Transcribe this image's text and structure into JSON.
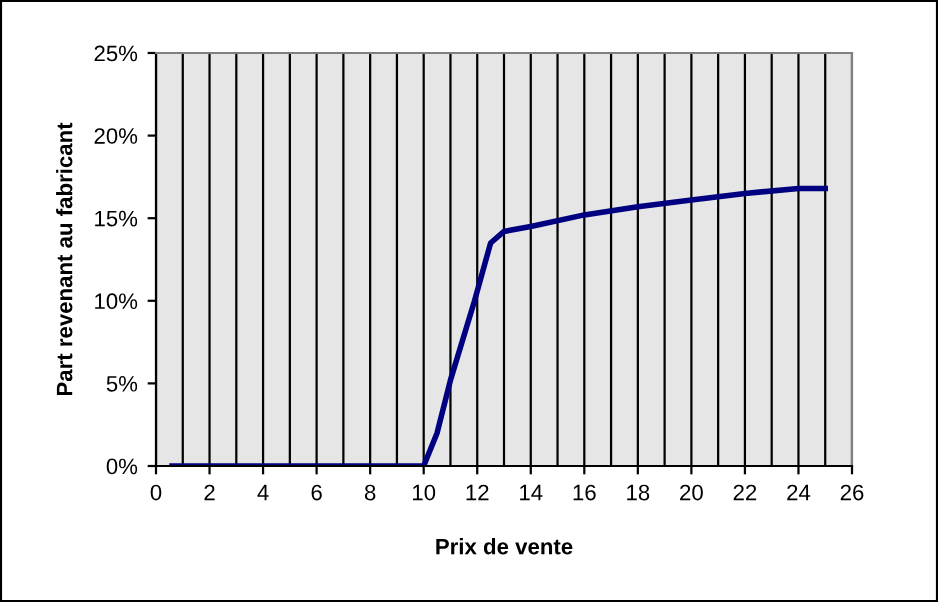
{
  "chart_data": {
    "type": "line",
    "xlabel": "Prix de vente",
    "ylabel": "Part revenant au fabricant",
    "x": [
      0.6,
      1,
      2,
      3,
      4,
      5,
      6,
      7,
      8,
      9,
      10,
      10.5,
      11,
      11.9,
      12.5,
      13,
      14,
      16,
      18,
      20,
      22,
      24,
      25
    ],
    "series": [
      {
        "color": "#000080",
        "values": [
          0,
          0,
          0,
          0,
          0,
          0,
          0,
          0,
          0,
          0,
          0,
          2.0,
          5.2,
          10.0,
          13.5,
          14.2,
          14.5,
          15.2,
          15.7,
          16.1,
          16.5,
          16.8,
          16.8
        ]
      }
    ],
    "xlim": [
      0,
      26
    ],
    "xticks": [
      0,
      {
        "value": 1,
        "label": null
      },
      2,
      {
        "value": 3,
        "label": null
      },
      4,
      {
        "value": 5,
        "label": null
      },
      6,
      {
        "value": 7,
        "label": null
      },
      8,
      {
        "value": 9,
        "label": null
      },
      10,
      {
        "value": 11,
        "label": null
      },
      12,
      {
        "value": 13,
        "label": null
      },
      14,
      {
        "value": 15,
        "label": null
      },
      16,
      {
        "value": 17,
        "label": null
      },
      18,
      {
        "value": 19,
        "label": null
      },
      20,
      {
        "value": 21,
        "label": null
      },
      22,
      {
        "value": 23,
        "label": null
      },
      24,
      {
        "value": 25,
        "label": null
      },
      26
    ],
    "ylim": [
      0,
      25
    ],
    "yticks": [
      {
        "value": 0,
        "label": "0%"
      },
      {
        "value": 5,
        "label": "5%"
      },
      {
        "value": 10,
        "label": "10%"
      },
      {
        "value": 15,
        "label": "15%"
      },
      {
        "value": 20,
        "label": "20%"
      },
      {
        "value": 25,
        "label": "25%"
      }
    ],
    "grid": "x",
    "marker": "none",
    "line_style": "solid",
    "legend": false
  }
}
